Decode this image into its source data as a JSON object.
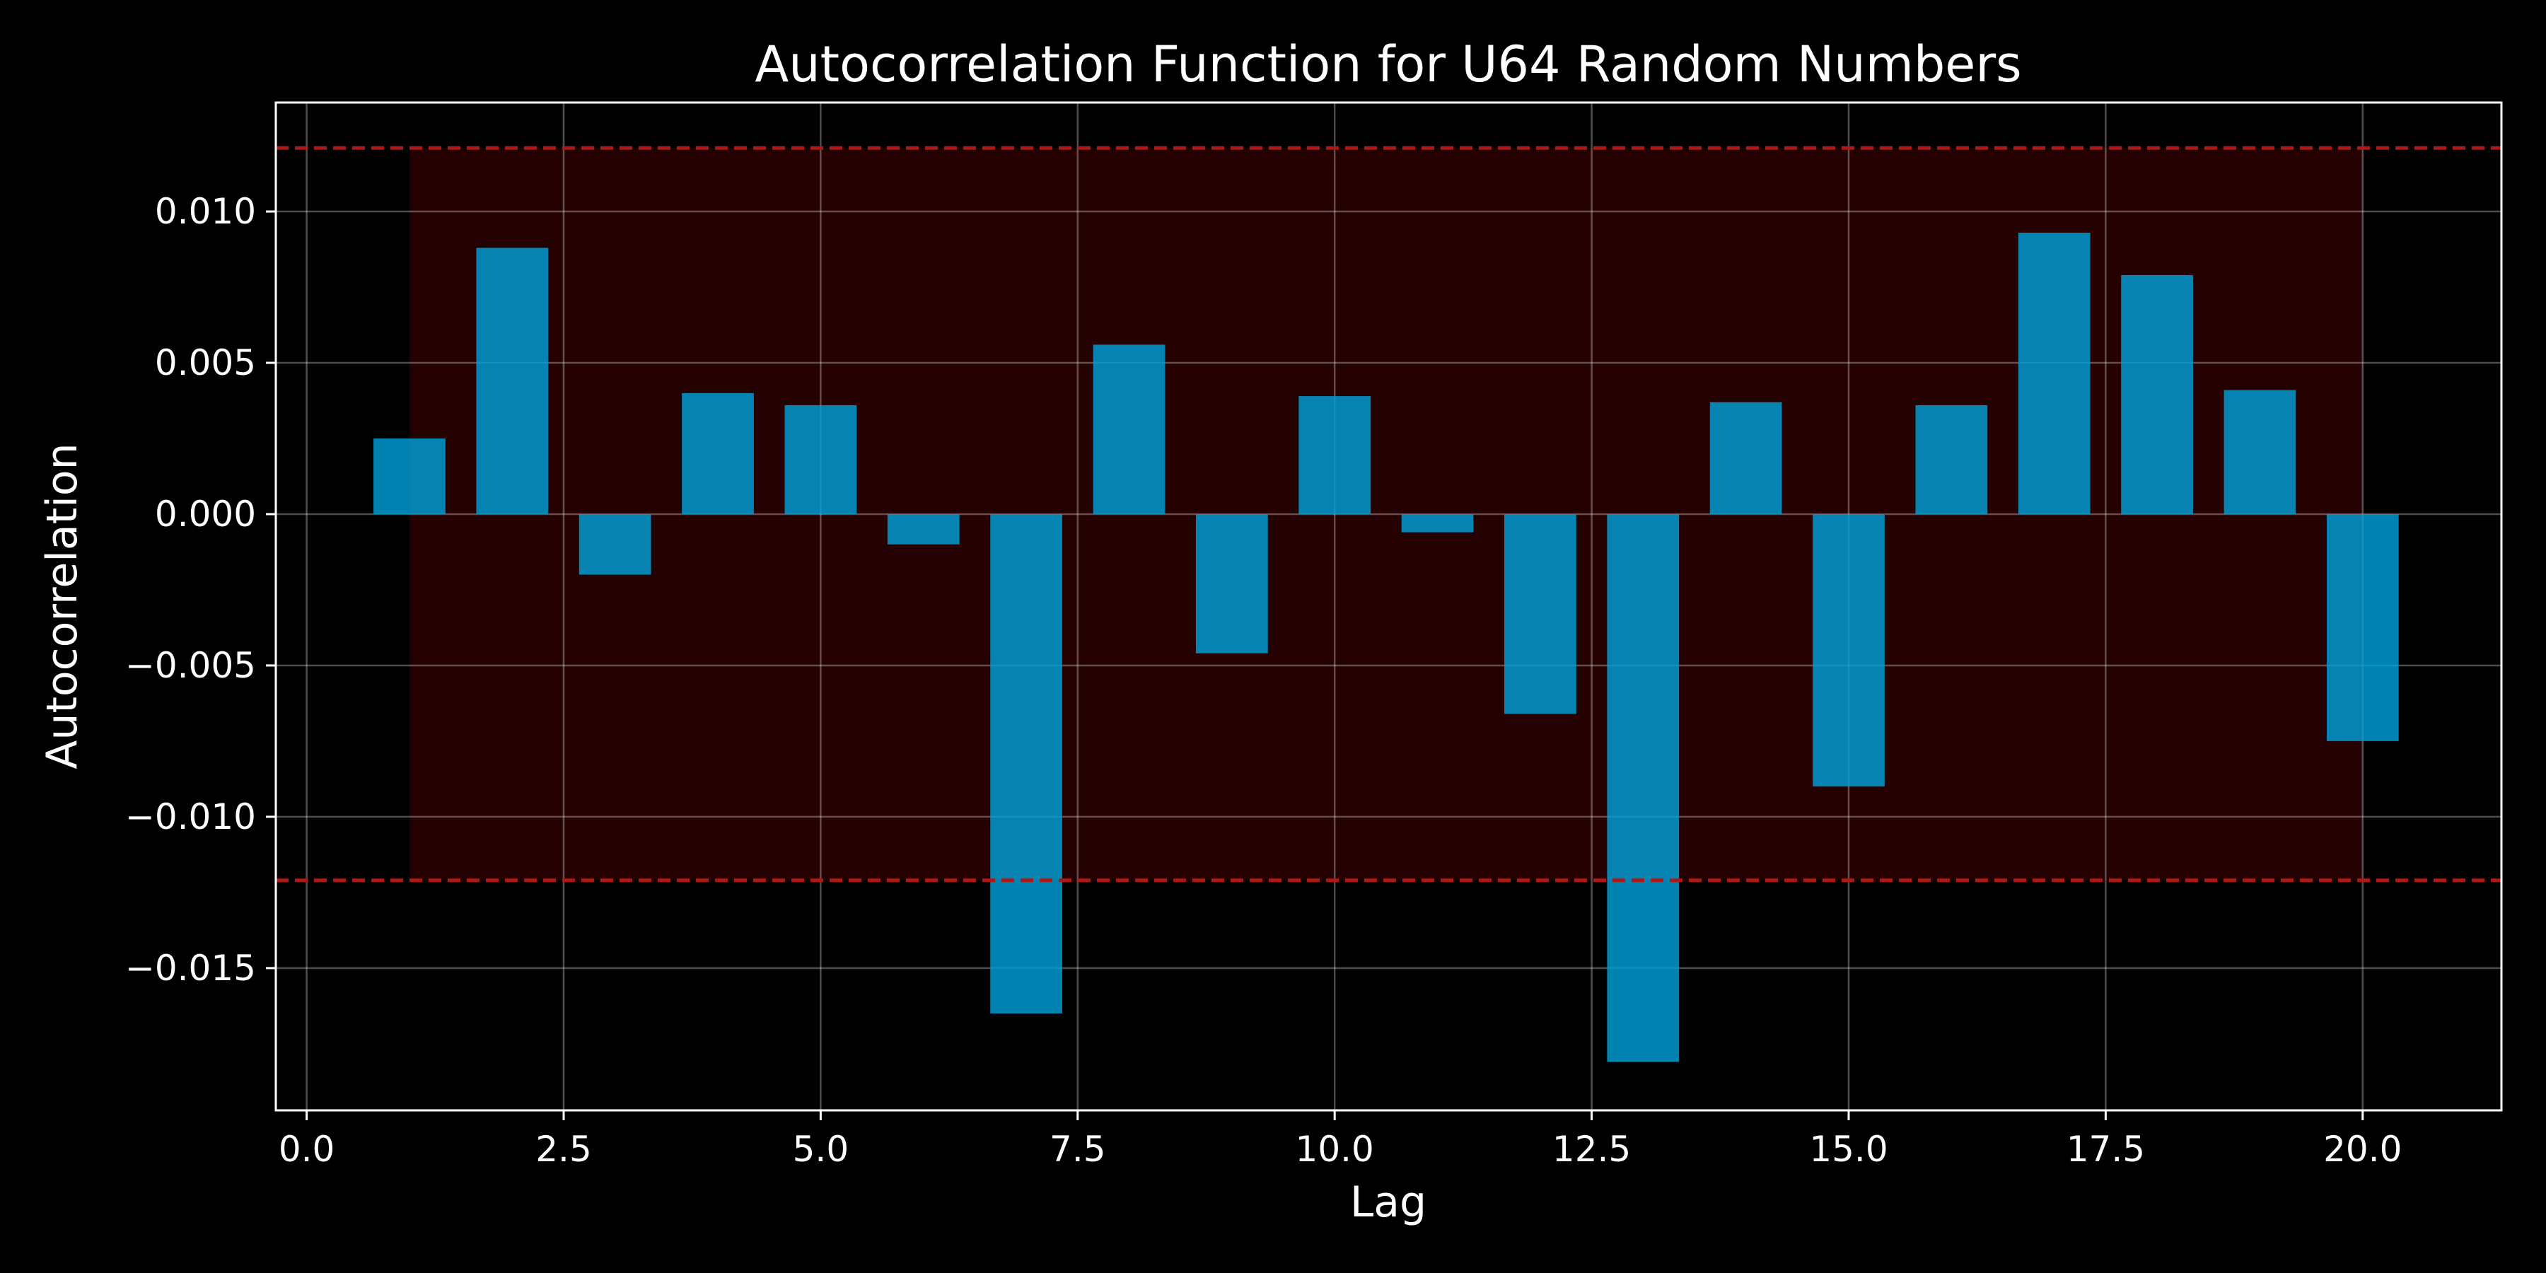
{
  "chart_data": {
    "type": "bar",
    "title": "Autocorrelation Function for U64 Random Numbers",
    "xlabel": "Lag",
    "ylabel": "Autocorrelation",
    "x": [
      1,
      2,
      3,
      4,
      5,
      6,
      7,
      8,
      9,
      10,
      11,
      12,
      13,
      14,
      15,
      16,
      17,
      18,
      19,
      20
    ],
    "values": [
      0.0025,
      0.0088,
      -0.002,
      0.004,
      0.0036,
      -0.001,
      -0.0165,
      0.0056,
      -0.0046,
      0.0039,
      -0.0006,
      -0.0066,
      -0.0181,
      0.0037,
      -0.009,
      0.0036,
      0.0093,
      0.0079,
      0.0041,
      -0.0075
    ],
    "bar_width": 0.7,
    "confidence_bounds": [
      -0.0121,
      0.0121
    ],
    "confidence_band_x": [
      1,
      20
    ],
    "xlim": [
      -0.3,
      21.35
    ],
    "ylim": [
      -0.0197,
      0.0136
    ],
    "xticks": [
      0,
      2.5,
      5,
      7.5,
      10,
      12.5,
      15,
      17.5,
      20
    ],
    "xtick_labels": [
      "0.0",
      "2.5",
      "5.0",
      "7.5",
      "10.0",
      "12.5",
      "15.0",
      "17.5",
      "20.0"
    ],
    "yticks": [
      -0.015,
      -0.01,
      -0.005,
      0,
      0.005,
      0.01
    ],
    "ytick_labels": [
      "−0.015",
      "−0.010",
      "−0.005",
      "0.000",
      "0.005",
      "0.010"
    ],
    "grid": true,
    "legend": "none",
    "colors": {
      "background": "#000000",
      "bar": "#00a0d8",
      "bound_line": "#b01818",
      "band_fill": "#2a0000",
      "grid": "#ffffff",
      "axis": "#ffffff"
    }
  }
}
